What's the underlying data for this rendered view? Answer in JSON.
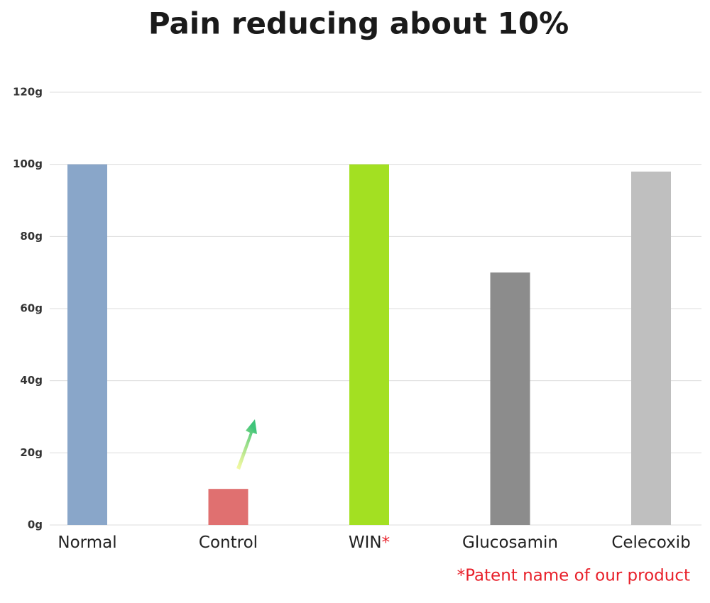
{
  "chart_data": {
    "type": "bar",
    "title": "Pain reducing about 10%",
    "categories": [
      "Normal",
      "Control",
      "WIN",
      "Glucosamin",
      "Celecoxib"
    ],
    "category_mark": "*",
    "values": [
      100,
      10,
      100,
      70,
      98
    ],
    "colors": [
      "#89a6c9",
      "#e07070",
      "#a3e022",
      "#8c8c8c",
      "#bfbfbf"
    ],
    "ylim": [
      0,
      120
    ],
    "yticks": [
      {
        "value": 0,
        "label": "0g"
      },
      {
        "value": 20,
        "label": "20g"
      },
      {
        "value": 40,
        "label": "40g"
      },
      {
        "value": 60,
        "label": "60g"
      },
      {
        "value": 80,
        "label": "80g"
      },
      {
        "value": 100,
        "label": "100g"
      },
      {
        "value": 120,
        "label": "120g"
      }
    ],
    "grid": true,
    "footnote": "*Patent name of our product"
  }
}
